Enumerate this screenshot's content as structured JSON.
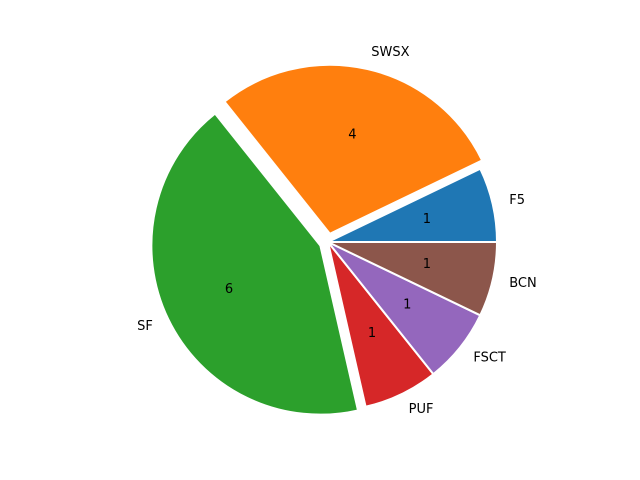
{
  "chart_data": {
    "type": "pie",
    "title": "",
    "start_angle_deg": 0,
    "direction": "counterclockwise",
    "slices": [
      {
        "label": "F5",
        "value": 1,
        "value_label": "1",
        "color": "#1f77b4",
        "exploded": false
      },
      {
        "label": "SWSX",
        "value": 4,
        "value_label": "4",
        "color": "#ff7f0e",
        "exploded": true
      },
      {
        "label": "SF",
        "value": 6,
        "value_label": "6",
        "color": "#2ca02c",
        "exploded": true
      },
      {
        "label": "PUF",
        "value": 1,
        "value_label": "1",
        "color": "#d62728",
        "exploded": false
      },
      {
        "label": "FSCT",
        "value": 1,
        "value_label": "1",
        "color": "#9467bd",
        "exploded": false
      },
      {
        "label": "BCN",
        "value": 1,
        "value_label": "1",
        "color": "#8c564b",
        "exploded": false
      }
    ]
  }
}
